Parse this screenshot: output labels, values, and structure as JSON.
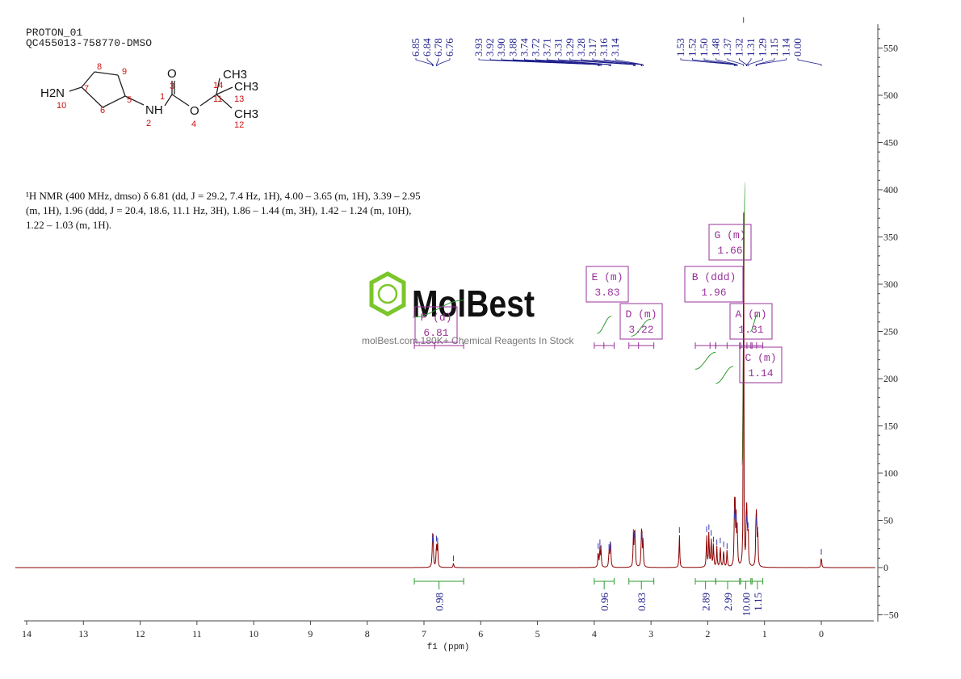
{
  "header": {
    "line1": "PROTON_01",
    "line2": "QC455013-758770-DMSO"
  },
  "molecule": {
    "labels": [
      "H2N",
      "10",
      "7",
      "8",
      "9",
      "6",
      "5",
      "NH",
      "2",
      "O",
      "3",
      "1",
      "O",
      "4",
      "11",
      "CH3",
      "14",
      "CH3",
      "13",
      "CH3",
      "12"
    ]
  },
  "description": {
    "line1": "¹H NMR (400 MHz, dmso) δ 6.81 (dd, J = 29.2, 7.4 Hz, 1H), 4.00 – 3.65 (m, 1H), 3.39 – 2.95",
    "line2": "(m, 1H), 1.96 (ddd, J = 20.4, 18.6, 11.1 Hz, 3H), 1.86 – 1.44 (m, 3H), 1.42 – 1.24 (m, 10H),",
    "line3": "1.22 – 1.03 (m, 1H)."
  },
  "watermark": {
    "brand": "MolBest",
    "tagline": "molBest.com,180K+ Chemical Reagents In Stock"
  },
  "chart_data": {
    "type": "line",
    "xlabel": "f1 (ppm)",
    "x_range": [
      14.2,
      -0.95
    ],
    "y_range": [
      -55,
      580
    ],
    "x_ticks": [
      14,
      13,
      12,
      11,
      10,
      9,
      8,
      7,
      6,
      5,
      4,
      3,
      2,
      1,
      0
    ],
    "y_ticks": [
      550,
      500,
      450,
      400,
      350,
      300,
      250,
      200,
      150,
      100,
      50,
      0,
      -50
    ],
    "peak_labels": [
      {
        "group": "a",
        "values": [
          "6.85",
          "6.84",
          "6.78",
          "6.76"
        ]
      },
      {
        "group": "b",
        "values": [
          "3.93",
          "3.92",
          "3.90",
          "3.88",
          "3.74",
          "3.72",
          "3.71",
          "3.31",
          "3.29",
          "3.28",
          "3.17",
          "3.16",
          "3.14"
        ]
      },
      {
        "group": "c",
        "values": [
          "1.53",
          "1.52",
          "1.50",
          "1.48",
          "1.37",
          "1.32",
          "1.31",
          "1.29",
          "1.15",
          "1.14",
          "0.00"
        ]
      }
    ],
    "peaks": [
      {
        "ppm": 6.85,
        "h": 25
      },
      {
        "ppm": 6.84,
        "h": 28
      },
      {
        "ppm": 6.78,
        "h": 26
      },
      {
        "ppm": 6.76,
        "h": 24
      },
      {
        "ppm": 6.48,
        "h": 5
      },
      {
        "ppm": 3.93,
        "h": 18
      },
      {
        "ppm": 3.9,
        "h": 22
      },
      {
        "ppm": 3.88,
        "h": 16
      },
      {
        "ppm": 3.74,
        "h": 17
      },
      {
        "ppm": 3.72,
        "h": 20
      },
      {
        "ppm": 3.71,
        "h": 16
      },
      {
        "ppm": 3.31,
        "h": 33
      },
      {
        "ppm": 3.29,
        "h": 30
      },
      {
        "ppm": 3.28,
        "h": 26
      },
      {
        "ppm": 3.17,
        "h": 30
      },
      {
        "ppm": 3.16,
        "h": 28
      },
      {
        "ppm": 3.14,
        "h": 24
      },
      {
        "ppm": 2.5,
        "h": 35
      },
      {
        "ppm": 2.02,
        "h": 36
      },
      {
        "ppm": 1.98,
        "h": 38
      },
      {
        "ppm": 1.94,
        "h": 32
      },
      {
        "ppm": 1.9,
        "h": 25
      },
      {
        "ppm": 1.84,
        "h": 22
      },
      {
        "ppm": 1.78,
        "h": 24
      },
      {
        "ppm": 1.72,
        "h": 20
      },
      {
        "ppm": 1.66,
        "h": 18
      },
      {
        "ppm": 1.53,
        "h": 50
      },
      {
        "ppm": 1.52,
        "h": 55
      },
      {
        "ppm": 1.5,
        "h": 48
      },
      {
        "ppm": 1.48,
        "h": 40
      },
      {
        "ppm": 1.37,
        "h": 575
      },
      {
        "ppm": 1.32,
        "h": 45
      },
      {
        "ppm": 1.31,
        "h": 48
      },
      {
        "ppm": 1.29,
        "h": 40
      },
      {
        "ppm": 1.15,
        "h": 42
      },
      {
        "ppm": 1.14,
        "h": 46
      },
      {
        "ppm": 1.12,
        "h": 35
      },
      {
        "ppm": 0.0,
        "h": 12
      }
    ],
    "multiplets": [
      {
        "id": "F",
        "type": "d",
        "shift": "6.81",
        "ppm": 6.81
      },
      {
        "id": "E",
        "type": "m",
        "shift": "3.83",
        "ppm": 3.83
      },
      {
        "id": "D",
        "type": "m",
        "shift": "3.22",
        "ppm": 3.22
      },
      {
        "id": "B",
        "type": "ddd",
        "shift": "1.96",
        "ppm": 1.96
      },
      {
        "id": "G",
        "type": "m",
        "shift": "1.66",
        "ppm": 1.66
      },
      {
        "id": "A",
        "type": "m",
        "shift": "1.31",
        "ppm": 1.31
      },
      {
        "id": "C",
        "type": "m",
        "shift": "1.14",
        "ppm": 1.14
      }
    ],
    "integrals": [
      {
        "from": 7.17,
        "to": 6.3,
        "value": "0.98"
      },
      {
        "from": 4.0,
        "to": 3.65,
        "value": "0.96"
      },
      {
        "from": 3.39,
        "to": 2.95,
        "value": "0.83"
      },
      {
        "from": 2.22,
        "to": 1.86,
        "value": "2.89"
      },
      {
        "from": 1.86,
        "to": 1.44,
        "value": "2.99"
      },
      {
        "from": 1.42,
        "to": 1.24,
        "value": "10.00"
      },
      {
        "from": 1.22,
        "to": 1.03,
        "value": "1.15"
      }
    ],
    "colors": {
      "spectrum": "#8b0000",
      "integral": "#2e9a2e",
      "peak_label": "#1a1a8a",
      "multiplet": "#993399",
      "axis": "#333333"
    }
  }
}
